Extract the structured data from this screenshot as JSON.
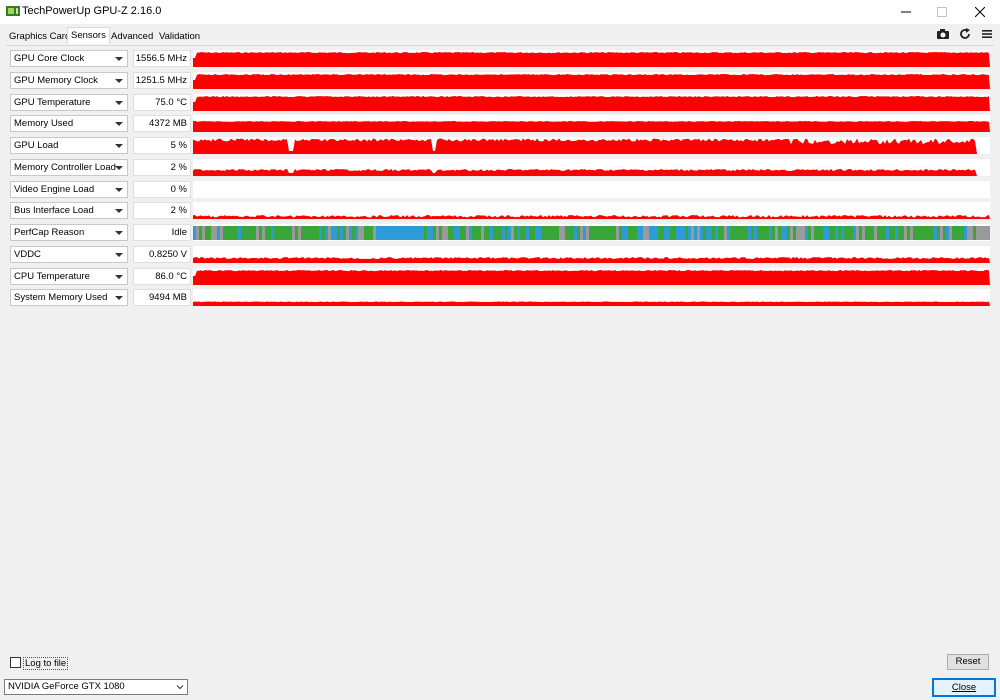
{
  "window": {
    "title": "TechPowerUp GPU-Z 2.16.0"
  },
  "tabs": [
    {
      "label": "Graphics Card",
      "active": false
    },
    {
      "label": "Sensors",
      "active": true
    },
    {
      "label": "Advanced",
      "active": false
    },
    {
      "label": "Validation",
      "active": false
    }
  ],
  "toolbar_icons": [
    "camera-icon",
    "refresh-icon",
    "menu-icon"
  ],
  "sensors": [
    {
      "name": "GPU Core Clock",
      "value": "1556.5 MHz",
      "graph": "full",
      "color": "#ff0000"
    },
    {
      "name": "GPU Memory Clock",
      "value": "1251.5 MHz",
      "graph": "full",
      "color": "#ff0000"
    },
    {
      "name": "GPU Temperature",
      "value": "75.0 °C",
      "graph": "full",
      "color": "#ff0000"
    },
    {
      "name": "Memory Used",
      "value": "4372 MB",
      "graph": "high",
      "color": "#ff0000"
    },
    {
      "name": "GPU Load",
      "value": "5 %",
      "graph": "load",
      "color": "#ff0000"
    },
    {
      "name": "Memory Controller Load",
      "value": "2 %",
      "graph": "mcload",
      "color": "#ff0000"
    },
    {
      "name": "Video Engine Load",
      "value": "0 %",
      "graph": "empty",
      "color": "#ff0000"
    },
    {
      "name": "Bus Interface Load",
      "value": "2 %",
      "graph": "low",
      "color": "#ff0000"
    },
    {
      "name": "PerfCap Reason",
      "value": "Idle",
      "graph": "perfcap",
      "color": "#3aa63a"
    },
    {
      "name": "VDDC",
      "value": "0.8250 V",
      "graph": "vddc",
      "color": "#ff0000"
    },
    {
      "name": "CPU Temperature",
      "value": "86.0 °C",
      "graph": "full",
      "color": "#ff0000"
    },
    {
      "name": "System Memory Used",
      "value": "9494 MB",
      "graph": "sysmem",
      "color": "#ff0000"
    }
  ],
  "log_to_file": {
    "label": "Log to file",
    "checked": false
  },
  "reset_label": "Reset",
  "gpu_select": {
    "selected": "NVIDIA GeForce GTX 1080"
  },
  "close_label": "Close"
}
